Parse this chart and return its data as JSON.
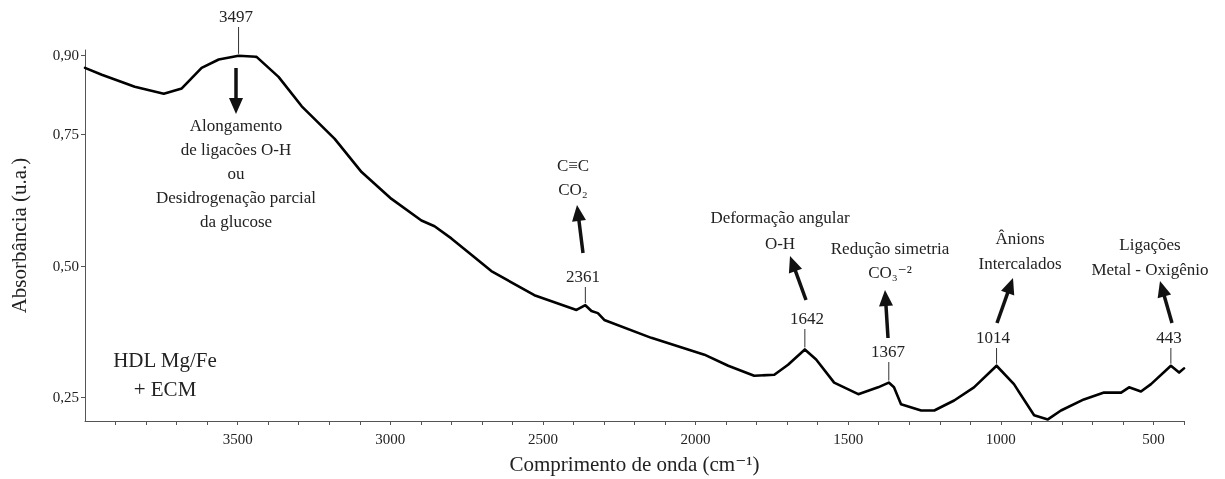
{
  "chart_data": {
    "type": "line",
    "xlabel": "Comprimento de onda (cm⁻¹)",
    "ylabel": "Absorbância (u.a.)",
    "xlim": [
      4000,
      400
    ],
    "ylim": [
      0.205,
      0.91
    ],
    "xticks": [
      {
        "value": 3900,
        "label": null
      },
      {
        "value": 3800,
        "label": null
      },
      {
        "value": 3700,
        "label": null
      },
      {
        "value": 3600,
        "label": null
      },
      3500,
      {
        "value": 3400,
        "label": null
      },
      {
        "value": 3300,
        "label": null
      },
      {
        "value": 3200,
        "label": null
      },
      {
        "value": 3100,
        "label": null
      },
      3000,
      {
        "value": 2900,
        "label": null
      },
      {
        "value": 2800,
        "label": null
      },
      {
        "value": 2700,
        "label": null
      },
      {
        "value": 2600,
        "label": null
      },
      2500,
      {
        "value": 2400,
        "label": null
      },
      {
        "value": 2300,
        "label": null
      },
      {
        "value": 2200,
        "label": null
      },
      {
        "value": 2100,
        "label": null
      },
      2000,
      {
        "value": 1900,
        "label": null
      },
      {
        "value": 1800,
        "label": null
      },
      {
        "value": 1700,
        "label": null
      },
      {
        "value": 1600,
        "label": null
      },
      1500,
      {
        "value": 1400,
        "label": null
      },
      {
        "value": 1300,
        "label": null
      },
      {
        "value": 1200,
        "label": null
      },
      {
        "value": 1100,
        "label": null
      },
      1000,
      {
        "value": 900,
        "label": null
      },
      {
        "value": 800,
        "label": null
      },
      {
        "value": 700,
        "label": null
      },
      {
        "value": 600,
        "label": null
      },
      500,
      {
        "value": 400,
        "label": null
      }
    ],
    "yticks": [
      {
        "value": 0.25,
        "label": "0,25"
      },
      {
        "value": 0.5,
        "label": "0,50"
      },
      {
        "value": 0.75,
        "label": "0,75"
      },
      {
        "value": 0.9,
        "label": "0,90"
      }
    ],
    "series": [
      {
        "color": "#000000",
        "x": [
          4000,
          3945,
          3837,
          3742,
          3683,
          3618,
          3562,
          3497,
          3438,
          3366,
          3290,
          3182,
          3094,
          2996,
          2898,
          2855,
          2800,
          2669,
          2528,
          2390,
          2361,
          2341,
          2320,
          2299,
          2145,
          1971,
          1893,
          1808,
          1742,
          1697,
          1642,
          1605,
          1546,
          1467,
          1402,
          1367,
          1350,
          1327,
          1261,
          1218,
          1153,
          1088,
          1014,
          957,
          891,
          846,
          803,
          728,
          662,
          606,
          580,
          541,
          508,
          443,
          416,
          400
        ],
        "values": [
          0.876,
          0.863,
          0.84,
          0.827,
          0.837,
          0.876,
          0.892,
          0.899,
          0.897,
          0.859,
          0.803,
          0.741,
          0.678,
          0.627,
          0.586,
          0.575,
          0.552,
          0.49,
          0.444,
          0.416,
          0.425,
          0.414,
          0.41,
          0.397,
          0.363,
          0.331,
          0.31,
          0.291,
          0.293,
          0.312,
          0.341,
          0.322,
          0.278,
          0.256,
          0.269,
          0.278,
          0.269,
          0.237,
          0.225,
          0.225,
          0.244,
          0.269,
          0.31,
          0.275,
          0.216,
          0.208,
          0.225,
          0.246,
          0.259,
          0.259,
          0.269,
          0.261,
          0.275,
          0.31,
          0.297,
          0.305
        ]
      }
    ],
    "annotations": [
      {
        "text": "3497",
        "x": 3497,
        "y": 0.899
      },
      "Alongamento\nde ligacões O-H\nou\nDesidrogenação parcial\nda glucose",
      {
        "text": "2361",
        "x": 2361,
        "y": 0.425
      },
      "C≡C\nCO₂",
      {
        "text": "1642",
        "x": 1642,
        "y": 0.341
      },
      "Deformação angular\nO-H",
      {
        "text": "1367",
        "x": 1367,
        "y": 0.278
      },
      "Redução simetria\nCO₃⁻²",
      {
        "text": "1014",
        "x": 1014,
        "y": 0.31
      },
      "Ânions\nIntercalados",
      {
        "text": "443",
        "x": 443,
        "y": 0.31
      },
      "Ligações\nMetal - Oxigênio",
      "HDL Mg/Fe\n+ ECM"
    ]
  }
}
